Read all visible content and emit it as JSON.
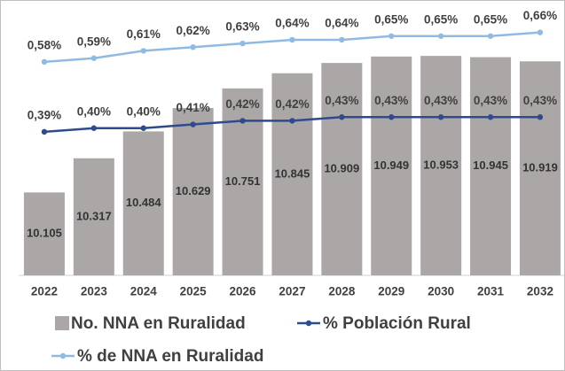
{
  "chart_data": {
    "type": "bar_line",
    "categories": [
      "2022",
      "2023",
      "2024",
      "2025",
      "2026",
      "2027",
      "2028",
      "2029",
      "2030",
      "2031",
      "2032"
    ],
    "ylim": [
      9.59,
      11.19
    ],
    "y2lim": [
      0,
      0.7
    ],
    "legend": "bottom",
    "series": [
      {
        "name": "No. NNA en Ruralidad",
        "type": "bar",
        "color": "#aba7a7",
        "values": [
          10.105,
          10.317,
          10.484,
          10.629,
          10.751,
          10.845,
          10.909,
          10.949,
          10.953,
          10.945,
          10.919
        ]
      },
      {
        "name": "% Población Rural",
        "type": "line",
        "axis": "y2",
        "color": "#2e4b8f",
        "values": [
          0.39,
          0.4,
          0.4,
          0.41,
          0.42,
          0.42,
          0.43,
          0.43,
          0.43,
          0.43,
          0.43
        ],
        "value_labels": [
          "0,39%",
          "0,40%",
          "0,40%",
          "0,41%",
          "0,42%",
          "0,42%",
          "0,43%",
          "0,43%",
          "0,43%",
          "0,43%",
          "0,43%"
        ]
      },
      {
        "name": "% de NNA en Ruralidad",
        "type": "line",
        "axis": "y2",
        "color": "#8fbbe3",
        "values": [
          0.58,
          0.59,
          0.61,
          0.62,
          0.63,
          0.64,
          0.64,
          0.65,
          0.65,
          0.65,
          0.66
        ],
        "value_labels": [
          "0,58%",
          "0,59%",
          "0,61%",
          "0,62%",
          "0,63%",
          "0,64%",
          "0,64%",
          "0,65%",
          "0,65%",
          "0,65%",
          "0,66%"
        ]
      }
    ]
  }
}
